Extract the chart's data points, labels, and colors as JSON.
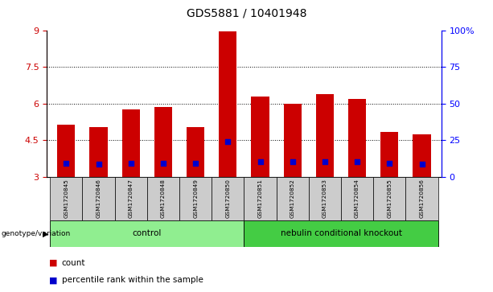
{
  "title": "GDS5881 / 10401948",
  "samples": [
    "GSM1720845",
    "GSM1720846",
    "GSM1720847",
    "GSM1720848",
    "GSM1720849",
    "GSM1720850",
    "GSM1720851",
    "GSM1720852",
    "GSM1720853",
    "GSM1720854",
    "GSM1720855",
    "GSM1720856"
  ],
  "bar_bottoms": [
    3,
    3,
    3,
    3,
    3,
    3,
    3,
    3,
    3,
    3,
    3,
    3
  ],
  "bar_tops": [
    5.15,
    5.05,
    5.75,
    5.85,
    5.05,
    8.98,
    6.3,
    6.0,
    6.4,
    6.2,
    4.85,
    4.75
  ],
  "blue_dot_values": [
    3.55,
    3.5,
    3.55,
    3.55,
    3.55,
    4.45,
    3.6,
    3.6,
    3.6,
    3.6,
    3.55,
    3.5
  ],
  "groups": [
    {
      "label": "control",
      "start": 0,
      "end": 6
    },
    {
      "label": "nebulin conditional knockout",
      "start": 6,
      "end": 12
    }
  ],
  "group_colors": [
    "#90ee90",
    "#44cc44"
  ],
  "ylim": [
    3,
    9
  ],
  "yticks_left": [
    3,
    4.5,
    6,
    7.5,
    9
  ],
  "yticks_right": [
    0,
    25,
    50,
    75,
    100
  ],
  "ytick_labels_left": [
    "3",
    "4.5",
    "6",
    "7.5",
    "9"
  ],
  "ytick_labels_right": [
    "0",
    "25",
    "50",
    "75",
    "100%"
  ],
  "bar_color": "#cc0000",
  "dot_color": "#0000cc",
  "grid_levels": [
    4.5,
    6.0,
    7.5
  ],
  "bar_width": 0.55,
  "tick_area_color": "#cccccc"
}
